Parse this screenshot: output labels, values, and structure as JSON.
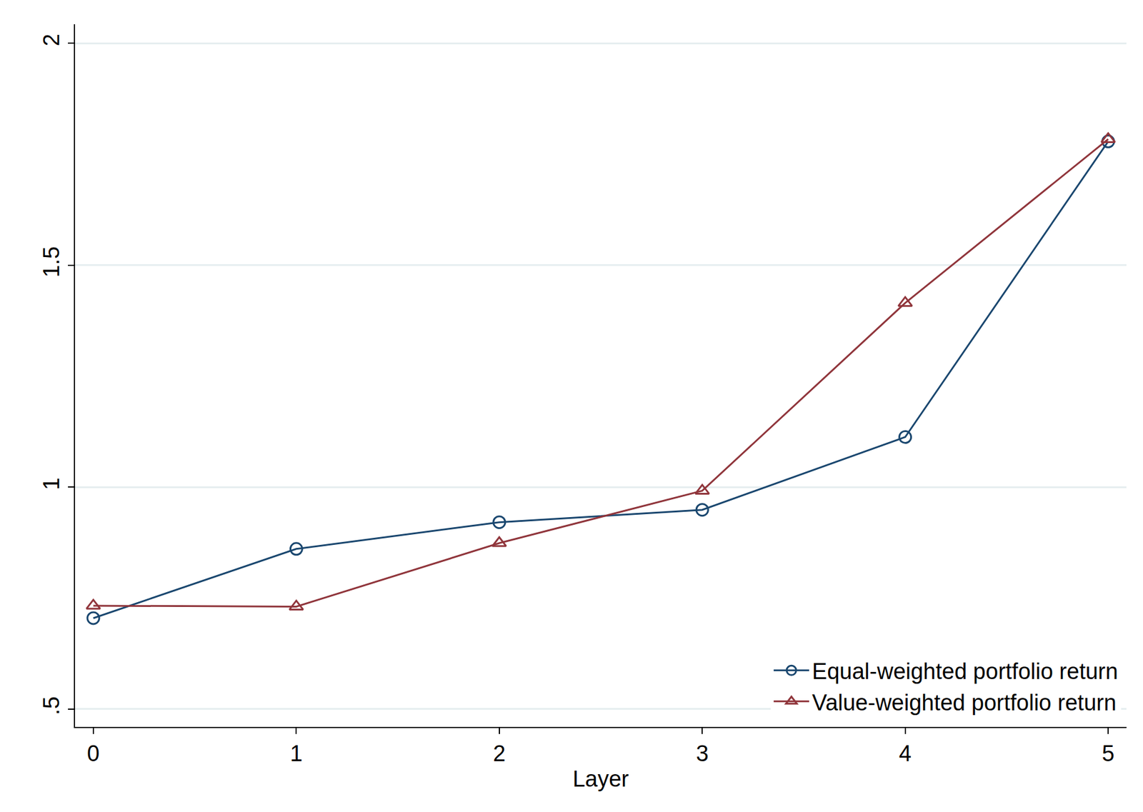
{
  "chart_data": {
    "type": "line",
    "x_label": "Layer",
    "x": [
      0,
      1,
      2,
      3,
      4,
      5
    ],
    "series": [
      {
        "name": "Equal-weighted portfolio return",
        "color": "#1a476f",
        "marker": "circle-open",
        "values": [
          0.705,
          0.861,
          0.921,
          0.949,
          1.113,
          1.779
        ]
      },
      {
        "name": "Value-weighted portfolio return",
        "color": "#90353b",
        "marker": "triangle-up-open",
        "values": [
          0.733,
          0.731,
          0.874,
          0.992,
          1.415,
          1.784
        ]
      }
    ],
    "xlim": [
      -0.09,
      5.09
    ],
    "xticks": [
      0,
      1,
      2,
      3,
      4,
      5
    ],
    "ylim": [
      0.46,
      2.043
    ],
    "yticks": [
      {
        "value": 0.5,
        "label": ".5"
      },
      1,
      1.5,
      2
    ],
    "grid": true,
    "legend": "bottom right"
  }
}
